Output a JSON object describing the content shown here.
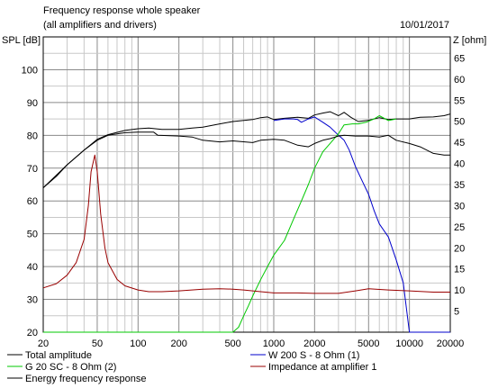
{
  "chart_data": {
    "type": "line",
    "title": "Frequency response whole speaker",
    "subtitle": "(all amplifiers and drivers)",
    "date": "10/01/2017",
    "ylabel": "SPL [dB]",
    "y2label": "Z [ohm]",
    "xscale": "log",
    "xlim": [
      20,
      20000
    ],
    "ylim": [
      20,
      110
    ],
    "y2lim": [
      0,
      70
    ],
    "grid": true,
    "x_ticks": [
      {
        "value": 20,
        "label": "20"
      },
      {
        "value": 50,
        "label": "50"
      },
      {
        "value": 100,
        "label": "100"
      },
      {
        "value": 200,
        "label": "200"
      },
      {
        "value": 500,
        "label": "500"
      },
      {
        "value": 1000,
        "label": "1000"
      },
      {
        "value": 2000,
        "label": "2000"
      },
      {
        "value": 5000,
        "label": "5000"
      },
      {
        "value": 10000,
        "label": "10000"
      },
      {
        "value": 20000,
        "label": "20000"
      }
    ],
    "y_ticks": [
      "100",
      "90",
      "80",
      "70",
      "60",
      "50",
      "40",
      "30",
      "20"
    ],
    "y2_ticks": [
      "65",
      "60",
      "55",
      "50",
      "45",
      "40",
      "35",
      "30",
      "25",
      "20",
      "15",
      "10",
      "5"
    ],
    "legend_position": "bottom",
    "series": [
      {
        "name": "Total amplitude",
        "axis": "left",
        "color": "#000000",
        "points": [
          [
            20,
            64
          ],
          [
            25,
            67.5
          ],
          [
            30,
            71
          ],
          [
            40,
            75.5
          ],
          [
            50,
            78.8
          ],
          [
            60,
            80.2
          ],
          [
            80,
            81.5
          ],
          [
            100,
            82
          ],
          [
            120,
            82.2
          ],
          [
            150,
            81.8
          ],
          [
            200,
            81.8
          ],
          [
            250,
            82.2
          ],
          [
            300,
            82.5
          ],
          [
            400,
            83.5
          ],
          [
            500,
            84.2
          ],
          [
            700,
            84.8
          ],
          [
            800,
            85.4
          ],
          [
            900,
            85.6
          ],
          [
            1000,
            84.8
          ],
          [
            1200,
            85.2
          ],
          [
            1500,
            85.5
          ],
          [
            1800,
            85.2
          ],
          [
            2000,
            86.2
          ],
          [
            2300,
            86.8
          ],
          [
            2600,
            87.2
          ],
          [
            3000,
            86
          ],
          [
            3300,
            87
          ],
          [
            3700,
            85.5
          ],
          [
            4200,
            84.2
          ],
          [
            5000,
            84.6
          ],
          [
            6000,
            85.4
          ],
          [
            7000,
            84.8
          ],
          [
            8000,
            85
          ],
          [
            10000,
            85
          ],
          [
            12000,
            85.5
          ],
          [
            15000,
            85.6
          ],
          [
            18000,
            86
          ],
          [
            20000,
            86.5
          ]
        ]
      },
      {
        "name": "W 200 S - 8 Ohm (1)",
        "axis": "left",
        "color": "#0000cc",
        "points": [
          [
            1000,
            84.5
          ],
          [
            1200,
            85
          ],
          [
            1400,
            85
          ],
          [
            1500,
            84.8
          ],
          [
            1600,
            84
          ],
          [
            1800,
            85
          ],
          [
            2000,
            85.6
          ],
          [
            2300,
            84
          ],
          [
            2600,
            82.5
          ],
          [
            3000,
            80
          ],
          [
            3300,
            78.5
          ],
          [
            3600,
            75.5
          ],
          [
            4000,
            70.5
          ],
          [
            4500,
            66
          ],
          [
            5000,
            62
          ],
          [
            5500,
            57
          ],
          [
            6000,
            53
          ],
          [
            7000,
            49
          ],
          [
            8000,
            42
          ],
          [
            9000,
            35
          ],
          [
            10000,
            20
          ],
          [
            20000,
            20
          ]
        ]
      },
      {
        "name": "G 20 SC - 8 Ohm (2)",
        "axis": "left",
        "color": "#00c800",
        "points": [
          [
            20,
            20
          ],
          [
            500,
            20
          ],
          [
            550,
            21.5
          ],
          [
            600,
            25
          ],
          [
            650,
            28
          ],
          [
            700,
            31
          ],
          [
            800,
            36
          ],
          [
            900,
            40
          ],
          [
            1000,
            43.5
          ],
          [
            1200,
            48
          ],
          [
            1400,
            54.5
          ],
          [
            1600,
            60
          ],
          [
            1800,
            65
          ],
          [
            2000,
            70
          ],
          [
            2300,
            75
          ],
          [
            2600,
            77.5
          ],
          [
            3000,
            80.5
          ],
          [
            3300,
            83.2
          ],
          [
            3800,
            83.5
          ],
          [
            4200,
            83.5
          ],
          [
            4800,
            84
          ],
          [
            5500,
            85
          ],
          [
            6000,
            86
          ],
          [
            7000,
            84.5
          ],
          [
            8000,
            85
          ]
        ]
      },
      {
        "name": "Impedance at amplifier 1",
        "axis": "right",
        "color": "#990000",
        "points": [
          [
            20,
            10.5
          ],
          [
            25,
            11.5
          ],
          [
            30,
            13.5
          ],
          [
            35,
            16.5
          ],
          [
            40,
            22
          ],
          [
            43,
            30
          ],
          [
            45,
            38
          ],
          [
            48,
            42
          ],
          [
            50,
            38
          ],
          [
            53,
            28
          ],
          [
            57,
            20
          ],
          [
            60,
            16.5
          ],
          [
            70,
            12.5
          ],
          [
            80,
            11
          ],
          [
            100,
            10
          ],
          [
            120,
            9.6
          ],
          [
            150,
            9.6
          ],
          [
            200,
            9.8
          ],
          [
            300,
            10.2
          ],
          [
            400,
            10.3
          ],
          [
            500,
            10.2
          ],
          [
            600,
            10
          ],
          [
            800,
            9.6
          ],
          [
            1000,
            9.3
          ],
          [
            1500,
            9.3
          ],
          [
            2000,
            9.2
          ],
          [
            3000,
            9.2
          ],
          [
            4000,
            9.8
          ],
          [
            5000,
            10.3
          ],
          [
            7000,
            10
          ],
          [
            10000,
            9.8
          ],
          [
            15000,
            9.5
          ],
          [
            20000,
            9.5
          ]
        ]
      },
      {
        "name": "Energy frequency response",
        "axis": "left",
        "color": "#000000",
        "points": [
          [
            20,
            64
          ],
          [
            30,
            71
          ],
          [
            40,
            75.5
          ],
          [
            50,
            78.5
          ],
          [
            60,
            80
          ],
          [
            80,
            80.8
          ],
          [
            100,
            81
          ],
          [
            130,
            81
          ],
          [
            140,
            80
          ],
          [
            200,
            79.8
          ],
          [
            250,
            79.5
          ],
          [
            300,
            78.5
          ],
          [
            400,
            78
          ],
          [
            500,
            78.3
          ],
          [
            700,
            77.8
          ],
          [
            800,
            78.5
          ],
          [
            1000,
            78.8
          ],
          [
            1200,
            78.5
          ],
          [
            1500,
            77
          ],
          [
            1800,
            76.5
          ],
          [
            2000,
            77.5
          ],
          [
            2300,
            78.5
          ],
          [
            2600,
            79
          ],
          [
            3000,
            79.8
          ],
          [
            3300,
            80
          ],
          [
            4000,
            79.8
          ],
          [
            5000,
            79.8
          ],
          [
            6000,
            79.5
          ],
          [
            7000,
            80
          ],
          [
            8000,
            78.5
          ],
          [
            10000,
            77.5
          ],
          [
            12000,
            76.5
          ],
          [
            15000,
            74.5
          ],
          [
            18000,
            74
          ],
          [
            20000,
            74
          ]
        ]
      }
    ]
  }
}
